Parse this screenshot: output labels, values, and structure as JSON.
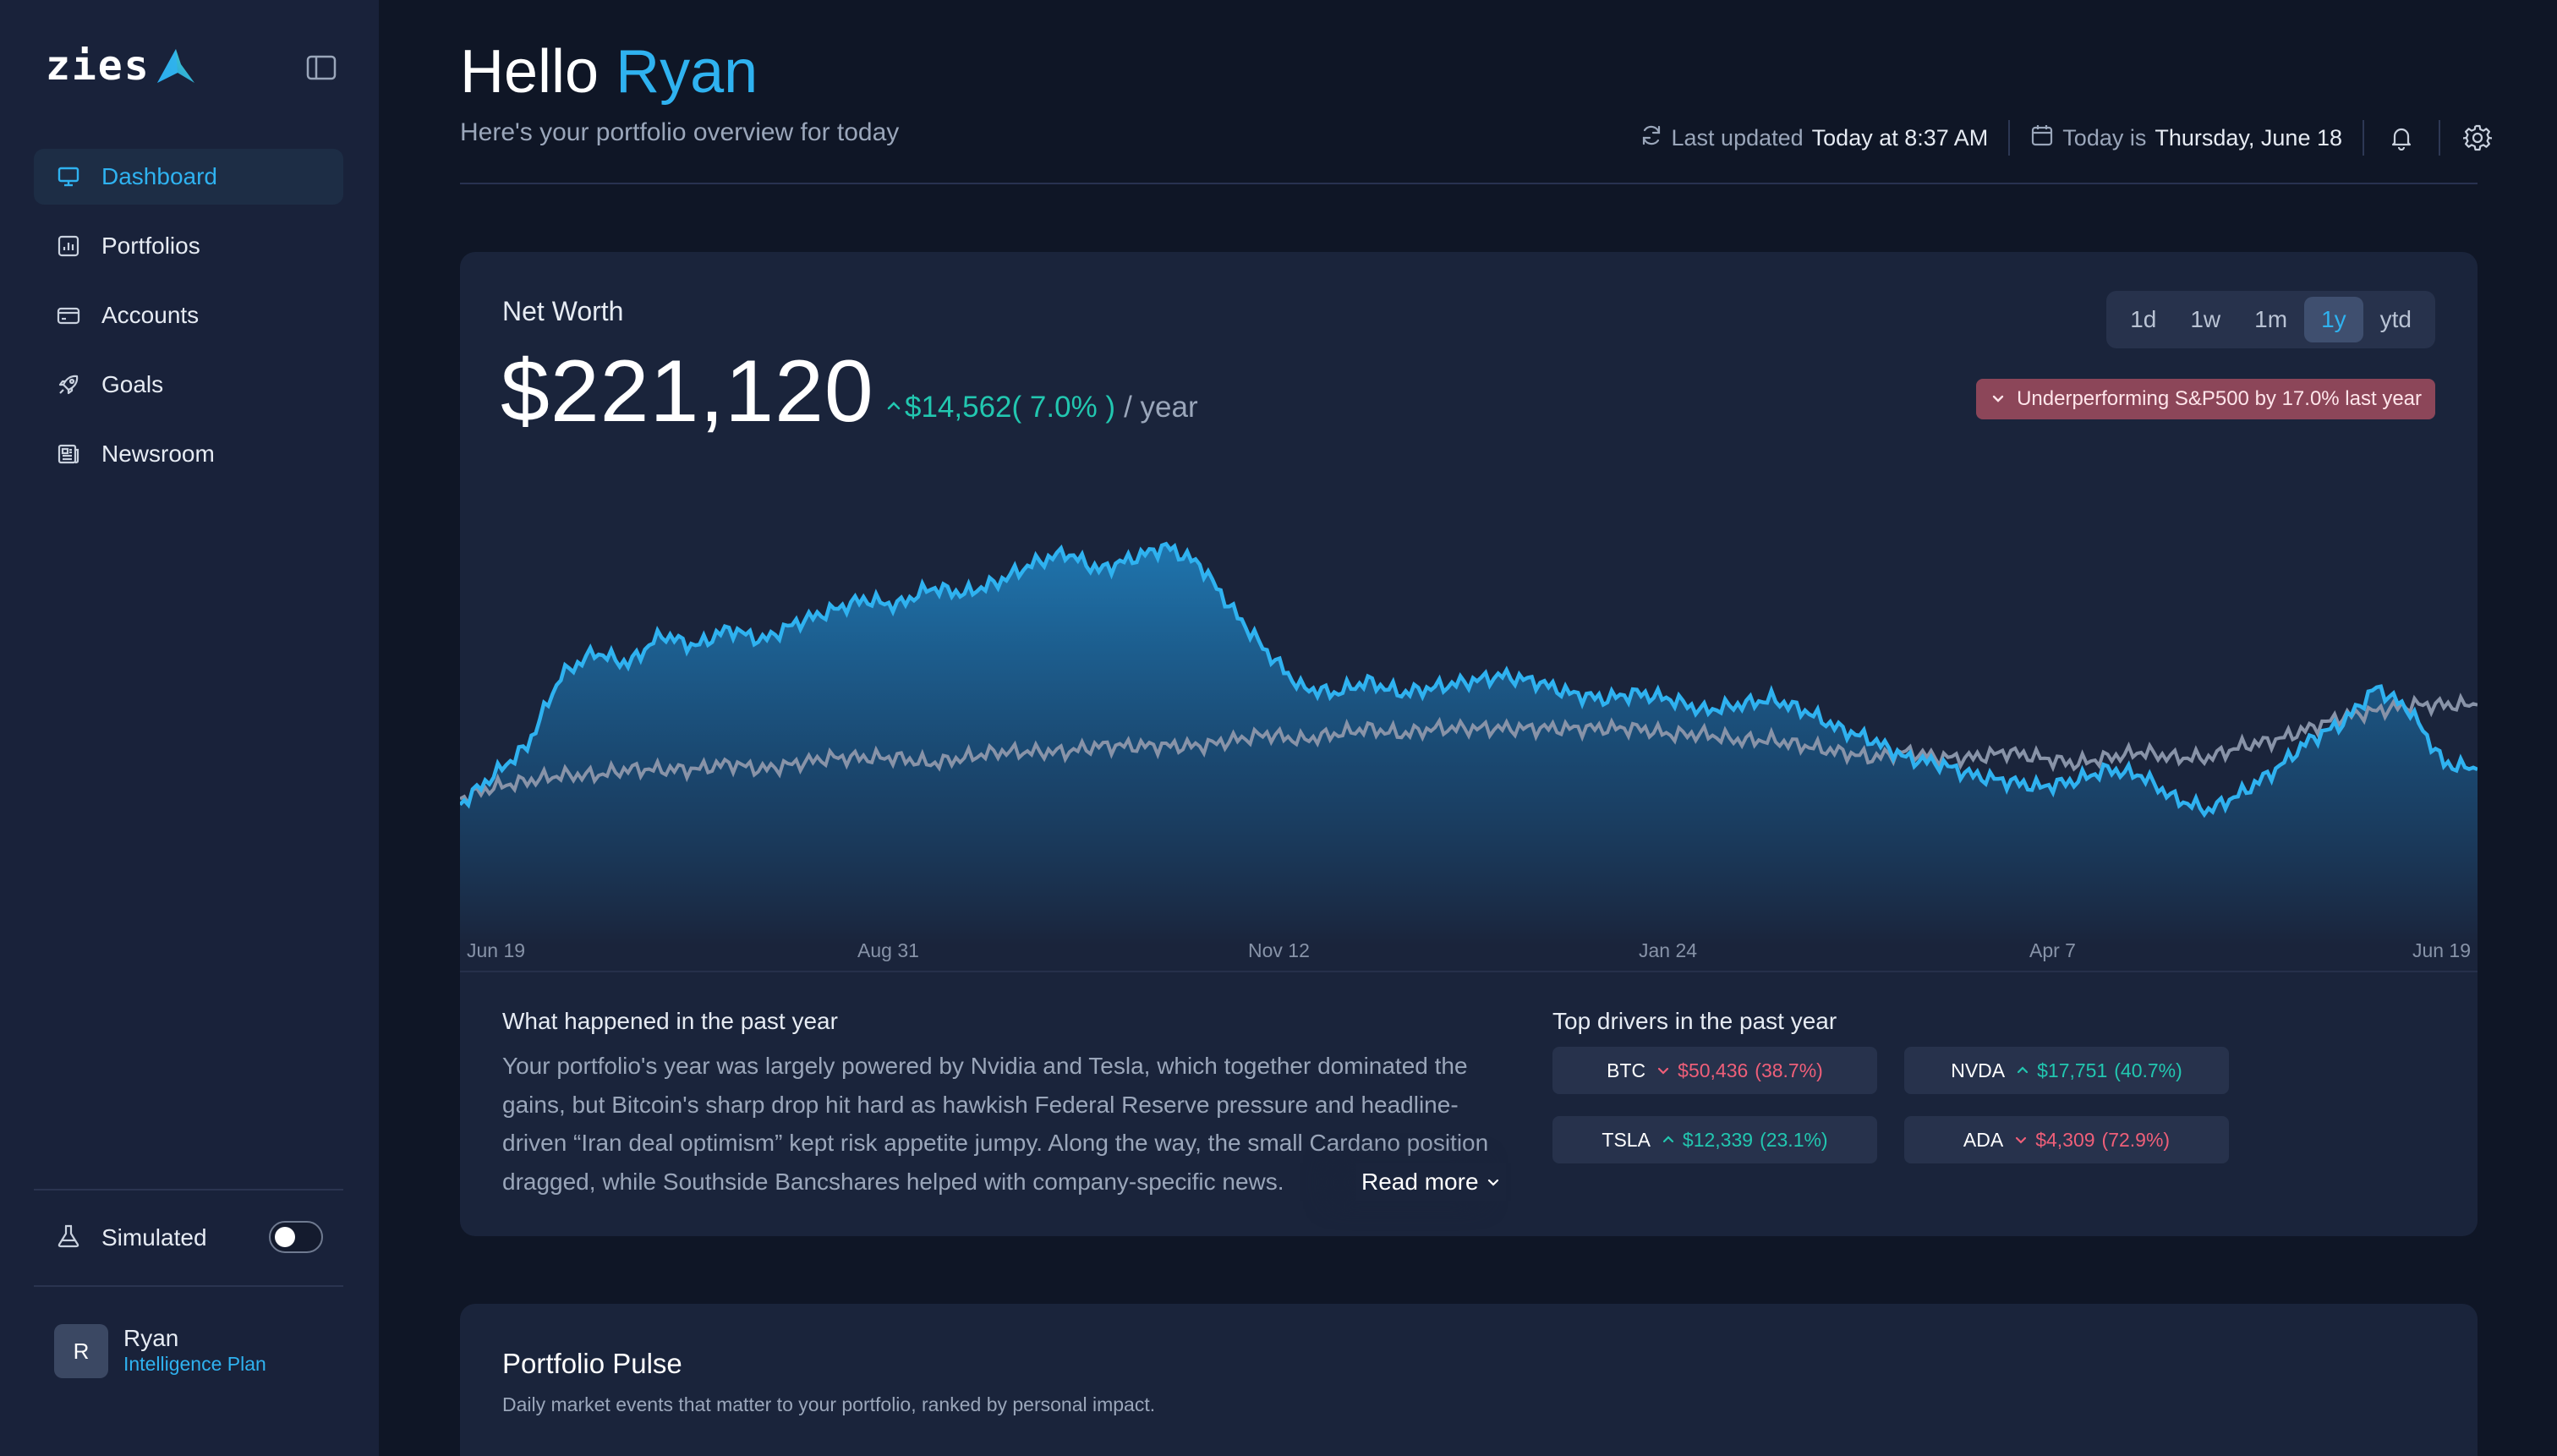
{
  "app": {
    "logo_text": "zies"
  },
  "sidebar": {
    "items": [
      {
        "label": "Dashboard",
        "icon": "monitor-icon",
        "active": true
      },
      {
        "label": "Portfolios",
        "icon": "bar-chart-icon",
        "active": false
      },
      {
        "label": "Accounts",
        "icon": "credit-card-icon",
        "active": false
      },
      {
        "label": "Goals",
        "icon": "rocket-icon",
        "active": false
      },
      {
        "label": "Newsroom",
        "icon": "newspaper-icon",
        "active": false
      }
    ],
    "simulated_label": "Simulated",
    "simulated_on": false,
    "user": {
      "initial": "R",
      "name": "Ryan",
      "plan": "Intelligence Plan"
    }
  },
  "header": {
    "greeting": "Hello",
    "name": "Ryan",
    "subtitle": "Here's your portfolio overview for today",
    "last_updated_label": "Last updated",
    "last_updated_value": "Today at 8:37 AM",
    "today_label": "Today is",
    "today_value": "Thursday, June 18"
  },
  "net_worth": {
    "label": "Net Worth",
    "value": "$221,120",
    "change": "$14,562",
    "change_pct": "( 7.0% )",
    "change_suffix": "/ year",
    "ranges": [
      "1d",
      "1w",
      "1m",
      "1y",
      "ytd"
    ],
    "active_range": "1y",
    "badge": "Underperforming S&P500 by 17.0% last year"
  },
  "colors": {
    "accent": "#2fb2f0",
    "positive": "#22c7b0",
    "negative": "#ef5f79",
    "benchmark_line": "#8893a8",
    "badge_bg": "#8c4659"
  },
  "chart_data": {
    "type": "area",
    "x_ticks": [
      "Jun 19",
      "Aug 31",
      "Nov 12",
      "Jan 24",
      "Apr 7",
      "Jun 19"
    ],
    "series": [
      {
        "values": [
          194,
          199,
          204,
          216,
          220,
          218,
          223,
          221,
          224,
          222,
          225,
          227,
          229,
          228,
          231,
          230,
          232,
          235,
          237,
          234,
          236,
          238,
          235,
          227,
          220,
          214,
          213,
          215,
          213,
          214,
          215,
          216,
          215,
          213,
          212,
          213,
          212,
          210,
          211,
          212,
          210,
          207,
          205,
          202,
          201,
          199,
          198,
          197,
          198,
          200,
          199,
          195,
          193,
          196,
          200,
          205,
          208,
          214,
          210,
          201,
          200
        ]
      },
      {
        "values": [
          195,
          197,
          198,
          199,
          199,
          200,
          200,
          200,
          201,
          200,
          201,
          202,
          202,
          202,
          201,
          202,
          203,
          203,
          203,
          204,
          204,
          204,
          204,
          205,
          206,
          205,
          206,
          207,
          206,
          207,
          207,
          207,
          207,
          207,
          207,
          207,
          206,
          206,
          205,
          205,
          204,
          203,
          202,
          203,
          202,
          202,
          203,
          202,
          201,
          202,
          203,
          202,
          202,
          204,
          205,
          207,
          209,
          210,
          211,
          211,
          211
        ]
      }
    ]
  },
  "summary": {
    "title": "What happened in the past year",
    "body": "Your portfolio's year was largely powered by Nvidia and Tesla, which together dominated the gains, but Bitcoin's sharp drop hit hard as hawkish Federal Reserve pressure and headline-driven “Iran deal optimism” kept risk appetite jumpy. Along the way, the small Cardano position dragged, while Southside Bancshares helped with company-specific news.",
    "read_more": "Read more"
  },
  "drivers": {
    "title": "Top drivers in the past year",
    "items": [
      {
        "ticker": "BTC",
        "direction": "down",
        "amount": "$50,436",
        "pct": "(38.7%)"
      },
      {
        "ticker": "NVDA",
        "direction": "up",
        "amount": "$17,751",
        "pct": "(40.7%)"
      },
      {
        "ticker": "TSLA",
        "direction": "up",
        "amount": "$12,339",
        "pct": "(23.1%)"
      },
      {
        "ticker": "ADA",
        "direction": "down",
        "amount": "$4,309",
        "pct": "(72.9%)"
      }
    ]
  },
  "pulse": {
    "title": "Portfolio Pulse",
    "subtitle": "Daily market events that matter to your portfolio, ranked by personal impact."
  }
}
